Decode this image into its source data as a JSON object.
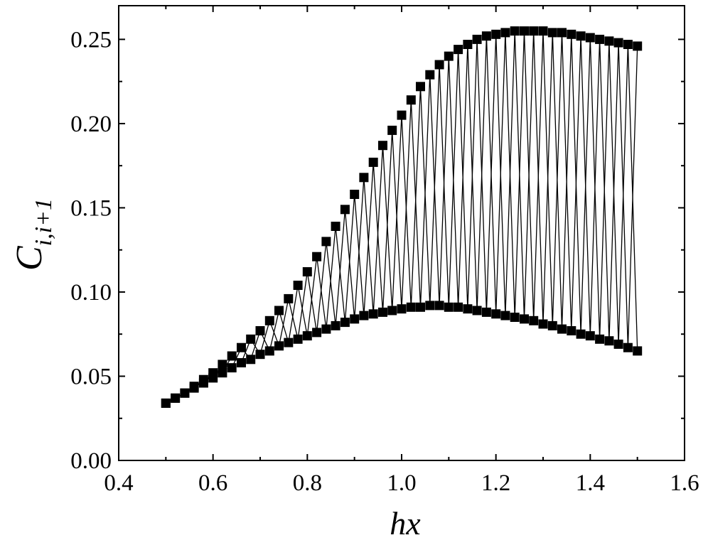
{
  "chart_data": {
    "type": "line",
    "title": "",
    "xlabel": "hx",
    "ylabel": {
      "base": "C",
      "subscript": "i,i+1"
    },
    "xlim": [
      0.4,
      1.6
    ],
    "ylim": [
      0.0,
      0.27
    ],
    "xticks": [
      "0.4",
      "0.6",
      "0.8",
      "1.0",
      "1.2",
      "1.4",
      "1.6"
    ],
    "yticks": [
      "0.00",
      "0.05",
      "0.10",
      "0.15",
      "0.20",
      "0.25"
    ],
    "grid": false,
    "legend": "none",
    "marker": "square",
    "series": [
      {
        "x": [
          0.5,
          0.52,
          0.54,
          0.56,
          0.58,
          0.6,
          0.62,
          0.64,
          0.66,
          0.68,
          0.7,
          0.72,
          0.74,
          0.76,
          0.78,
          0.8,
          0.82,
          0.84,
          0.86,
          0.88,
          0.9,
          0.92,
          0.94,
          0.96,
          0.98,
          1.0,
          1.02,
          1.04,
          1.06,
          1.08,
          1.1,
          1.12,
          1.14,
          1.16,
          1.18,
          1.2,
          1.22,
          1.24,
          1.26,
          1.28,
          1.3,
          1.32,
          1.34,
          1.36,
          1.38,
          1.4,
          1.42,
          1.44,
          1.46,
          1.48,
          1.5
        ],
        "y": [
          0.034,
          0.037,
          0.04,
          0.044,
          0.048,
          0.052,
          0.057,
          0.062,
          0.067,
          0.072,
          0.077,
          0.083,
          0.089,
          0.096,
          0.104,
          0.112,
          0.121,
          0.13,
          0.139,
          0.149,
          0.158,
          0.168,
          0.177,
          0.187,
          0.196,
          0.205,
          0.214,
          0.222,
          0.229,
          0.235,
          0.24,
          0.244,
          0.247,
          0.25,
          0.252,
          0.253,
          0.254,
          0.255,
          0.255,
          0.255,
          0.255,
          0.254,
          0.254,
          0.253,
          0.252,
          0.251,
          0.25,
          0.249,
          0.248,
          0.247,
          0.246
        ]
      },
      {
        "x": [
          0.5,
          0.52,
          0.54,
          0.56,
          0.58,
          0.6,
          0.62,
          0.64,
          0.66,
          0.68,
          0.7,
          0.72,
          0.74,
          0.76,
          0.78,
          0.8,
          0.82,
          0.84,
          0.86,
          0.88,
          0.9,
          0.92,
          0.94,
          0.96,
          0.98,
          1.0,
          1.02,
          1.04,
          1.06,
          1.08,
          1.1,
          1.12,
          1.14,
          1.16,
          1.18,
          1.2,
          1.22,
          1.24,
          1.26,
          1.28,
          1.3,
          1.32,
          1.34,
          1.36,
          1.38,
          1.4,
          1.42,
          1.44,
          1.46,
          1.48,
          1.5
        ],
        "y": [
          0.034,
          0.037,
          0.04,
          0.043,
          0.046,
          0.049,
          0.052,
          0.055,
          0.058,
          0.06,
          0.063,
          0.065,
          0.068,
          0.07,
          0.072,
          0.074,
          0.076,
          0.078,
          0.08,
          0.082,
          0.084,
          0.086,
          0.087,
          0.088,
          0.089,
          0.09,
          0.091,
          0.091,
          0.092,
          0.092,
          0.091,
          0.091,
          0.09,
          0.089,
          0.088,
          0.087,
          0.086,
          0.085,
          0.084,
          0.083,
          0.081,
          0.08,
          0.078,
          0.077,
          0.075,
          0.074,
          0.072,
          0.071,
          0.069,
          0.067,
          0.065
        ]
      }
    ]
  },
  "colors": {
    "background": "#ffffff",
    "axis": "#000000",
    "marker": "#000000",
    "line": "#000000"
  }
}
